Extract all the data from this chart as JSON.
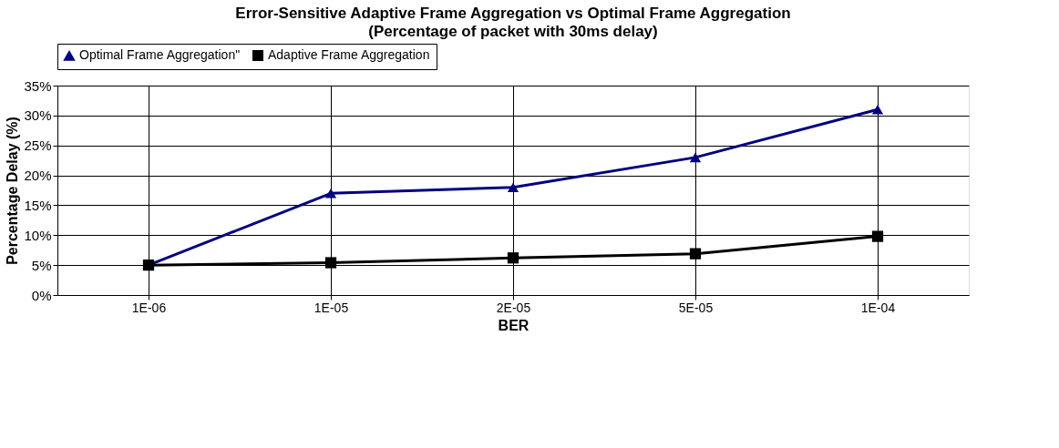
{
  "chart_data": {
    "type": "line",
    "title": "Error-Sensitive Adaptive Frame Aggregation vs Optimal Frame Aggregation",
    "subtitle": "(Percentage of packet with 30ms delay)",
    "xlabel": "BER",
    "ylabel": "Percentage Delay (%)",
    "categories": [
      "1E-06",
      "1E-05",
      "2E-05",
      "5E-05",
      "1E-04"
    ],
    "series": [
      {
        "name": "Optimal Frame Aggregation\"",
        "color": "#000080",
        "marker": "triangle",
        "values": [
          5,
          17,
          18,
          23,
          31
        ]
      },
      {
        "name": "Adaptive Frame Aggregation",
        "color": "#000000",
        "marker": "square",
        "values": [
          5,
          5.4,
          6.2,
          6.9,
          9.8
        ]
      }
    ],
    "ylim": [
      0,
      35
    ],
    "yticks": [
      {
        "value": 0,
        "label": "0%"
      },
      {
        "value": 5,
        "label": "5%"
      },
      {
        "value": 10,
        "label": "10%"
      },
      {
        "value": 15,
        "label": "15%"
      },
      {
        "value": 20,
        "label": "20%"
      },
      {
        "value": 25,
        "label": "25%"
      },
      {
        "value": 30,
        "label": "30%"
      },
      {
        "value": 35,
        "label": "35%"
      }
    ],
    "grid": true,
    "legend": "top",
    "line_style": "solid"
  }
}
